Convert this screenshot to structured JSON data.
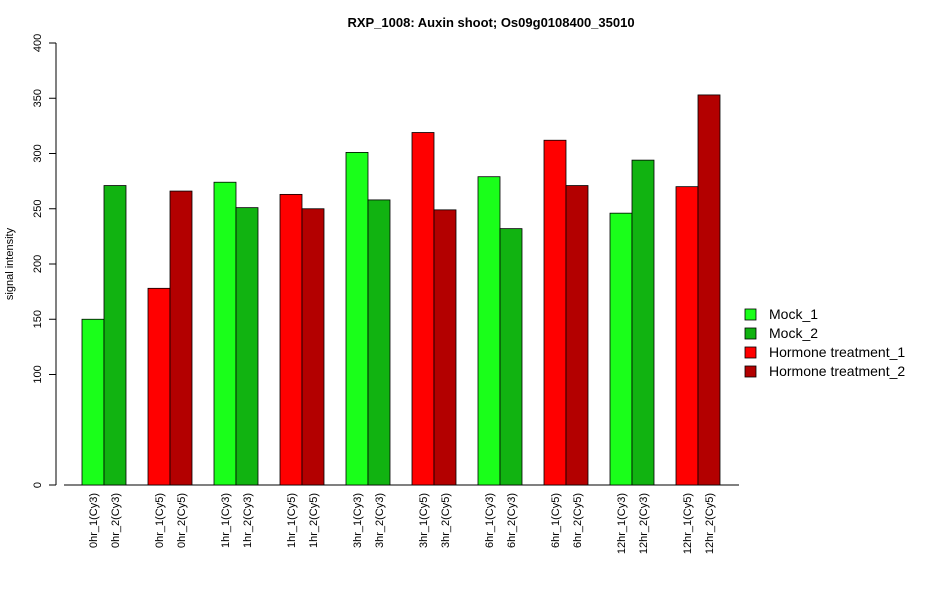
{
  "chart_data": {
    "type": "bar",
    "title": "RXP_1008: Auxin shoot; Os09g0108400_35010",
    "xlabel": "",
    "ylabel": "signal intensity",
    "ylim": [
      0,
      400
    ],
    "yticks": [
      0,
      100,
      150,
      200,
      250,
      300,
      350,
      400
    ],
    "grid": false,
    "legend_position": "right",
    "legend": [
      {
        "name": "Mock_1",
        "color": "#1AFF1A"
      },
      {
        "name": "Mock_2",
        "color": "#11B311"
      },
      {
        "name": "Hormone treatment_1",
        "color": "#FF0000"
      },
      {
        "name": "Hormone treatment_2",
        "color": "#B30000"
      }
    ],
    "bars": [
      {
        "label": "0hr_1(Cy3)",
        "value": 150,
        "color": "#1AFF1A"
      },
      {
        "label": "0hr_2(Cy3)",
        "value": 271,
        "color": "#11B311"
      },
      {
        "label": "0hr_1(Cy5)",
        "value": 178,
        "color": "#FF0000"
      },
      {
        "label": "0hr_2(Cy5)",
        "value": 266,
        "color": "#B30000"
      },
      {
        "label": "1hr_1(Cy3)",
        "value": 274,
        "color": "#1AFF1A"
      },
      {
        "label": "1hr_2(Cy3)",
        "value": 251,
        "color": "#11B311"
      },
      {
        "label": "1hr_1(Cy5)",
        "value": 263,
        "color": "#FF0000"
      },
      {
        "label": "1hr_2(Cy5)",
        "value": 250,
        "color": "#B30000"
      },
      {
        "label": "3hr_1(Cy3)",
        "value": 301,
        "color": "#1AFF1A"
      },
      {
        "label": "3hr_2(Cy3)",
        "value": 258,
        "color": "#11B311"
      },
      {
        "label": "3hr_1(Cy5)",
        "value": 319,
        "color": "#FF0000"
      },
      {
        "label": "3hr_2(Cy5)",
        "value": 249,
        "color": "#B30000"
      },
      {
        "label": "6hr_1(Cy3)",
        "value": 279,
        "color": "#1AFF1A"
      },
      {
        "label": "6hr_2(Cy3)",
        "value": 232,
        "color": "#11B311"
      },
      {
        "label": "6hr_1(Cy5)",
        "value": 312,
        "color": "#FF0000"
      },
      {
        "label": "6hr_2(Cy5)",
        "value": 271,
        "color": "#B30000"
      },
      {
        "label": "12hr_1(Cy3)",
        "value": 246,
        "color": "#1AFF1A"
      },
      {
        "label": "12hr_2(Cy3)",
        "value": 294,
        "color": "#11B311"
      },
      {
        "label": "12hr_1(Cy5)",
        "value": 270,
        "color": "#FF0000"
      },
      {
        "label": "12hr_2(Cy5)",
        "value": 353,
        "color": "#B30000"
      }
    ]
  }
}
